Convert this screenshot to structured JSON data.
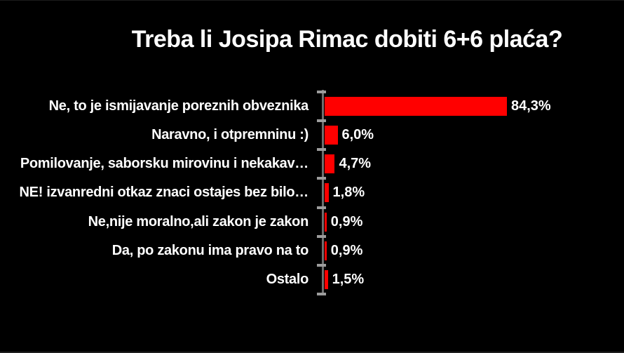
{
  "chart_data": {
    "type": "bar",
    "orientation": "horizontal",
    "title": "Treba li Josipa Rimac dobiti 6+6 plaća?",
    "categories": [
      "Ne, to je ismijavanje poreznih obveznika",
      "Naravno, i otpremninu :)",
      "Pomilovanje, saborsku mirovinu i nekakav…",
      "NE! izvanredni otkaz znaci ostajes bez bilo…",
      "Ne,nije moralno,ali zakon je zakon",
      "Da, po zakonu ima pravo na to",
      "Ostalo"
    ],
    "values": [
      84.3,
      6.0,
      4.7,
      1.8,
      0.9,
      0.9,
      1.5
    ],
    "value_labels": [
      "84,3%",
      "6,0%",
      "4,7%",
      "1,8%",
      "0,9%",
      "0,9%",
      "1,5%"
    ],
    "unit": "%",
    "xlim": [
      0,
      100
    ],
    "grid": false,
    "legend": false,
    "data_labels": true,
    "colors": {
      "background": "#000000",
      "bar": "#ff0000",
      "text": "#ffffff",
      "axis_line": "#6e6e6e",
      "tick": "#9c9c9c"
    }
  }
}
